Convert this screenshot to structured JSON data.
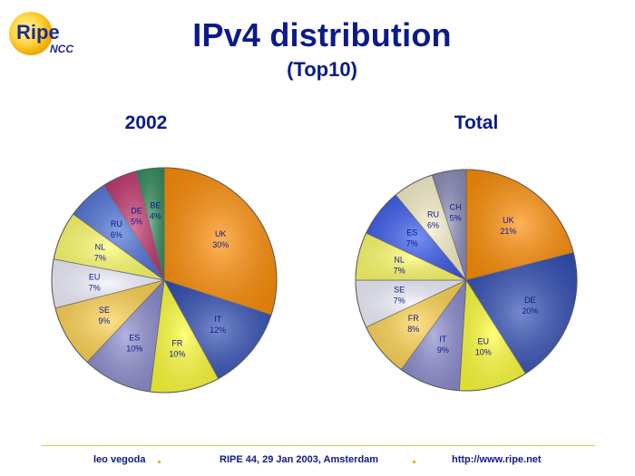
{
  "logo": {
    "brand_line1": "Ripe",
    "brand_line2": "NCC"
  },
  "title": "IPv4 distribution",
  "subtitle": "(Top10)",
  "chart_data": [
    {
      "type": "pie",
      "title": "2002",
      "labels": [
        "UK",
        "IT",
        "FR",
        "ES",
        "SE",
        "EU",
        "NL",
        "RU",
        "DE",
        "BE"
      ],
      "values": [
        30,
        12,
        10,
        10,
        9,
        7,
        7,
        6,
        5,
        4
      ],
      "value_labels": [
        "30%",
        "12%",
        "10%",
        "10%",
        "9%",
        "7%",
        "7%",
        "6%",
        "5%",
        "4%"
      ],
      "colors": [
        "#ff8c00",
        "#2e4bb4",
        "#ffff33",
        "#8a8ad0",
        "#ffd24a",
        "#f2f2ff",
        "#ffff66",
        "#4a6fd8",
        "#c0306a",
        "#2e8b57"
      ]
    },
    {
      "type": "pie",
      "title": "Total",
      "labels": [
        "UK",
        "DE",
        "EU",
        "IT",
        "FR",
        "SE",
        "NL",
        "ES",
        "RU",
        "CH"
      ],
      "values": [
        21,
        20,
        10,
        9,
        8,
        7,
        7,
        7,
        6,
        5
      ],
      "value_labels": [
        "21%",
        "20%",
        "10%",
        "9%",
        "8%",
        "7%",
        "7%",
        "7%",
        "6%",
        "5%"
      ],
      "colors": [
        "#ff8c00",
        "#2e4bb4",
        "#ffff33",
        "#8a8ad0",
        "#ffd24a",
        "#f2f2ff",
        "#ffff66",
        "#3355ee",
        "#f7f0c8",
        "#8a8ab8"
      ]
    }
  ],
  "footer": {
    "author": "leo vegoda",
    "event": "RIPE 44, 29 Jan 2003, Amsterdam",
    "url": "http://www.ripe.net"
  }
}
